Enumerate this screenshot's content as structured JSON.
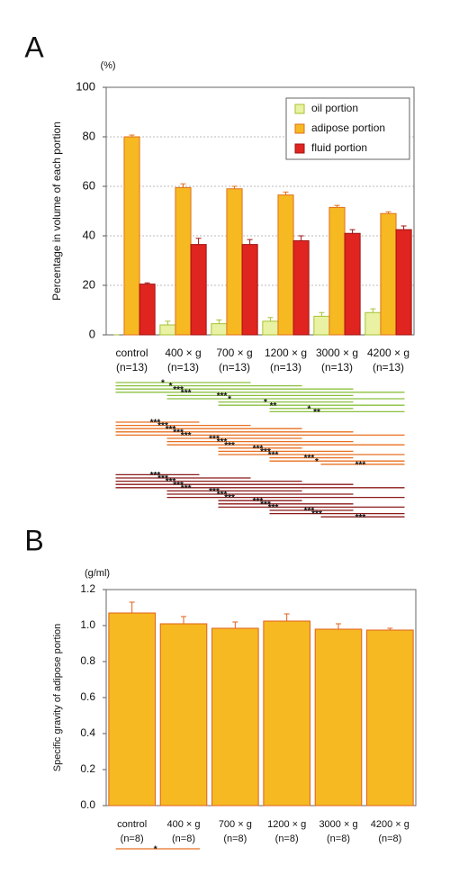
{
  "chart_data": [
    {
      "type": "bar",
      "panel": "A",
      "unit": "(%)",
      "ylabel": "Percentage in volume of each portion",
      "categories": [
        "control",
        "400 × g",
        "700 × g",
        "1200 × g",
        "3000 × g",
        "4200 × g"
      ],
      "n_labels": [
        "(n=13)",
        "(n=13)",
        "(n=13)",
        "(n=13)",
        "(n=13)",
        "(n=13)"
      ],
      "series": [
        {
          "name": "oil portion",
          "color": "#e9f2a2",
          "edge": "#a6c232",
          "values": [
            0,
            4,
            4.5,
            5.5,
            7.5,
            9
          ],
          "errors": [
            0,
            1.5,
            1.5,
            1.5,
            1.5,
            1.5
          ]
        },
        {
          "name": "adipose portion",
          "color": "#f6b922",
          "edge": "#e0701a",
          "values": [
            80,
            59.5,
            59,
            56.5,
            51.5,
            49
          ],
          "errors": [
            0.7,
            1.5,
            1,
            1.2,
            0.8,
            0.7
          ]
        },
        {
          "name": "fluid portion",
          "color": "#e02420",
          "edge": "#a01212",
          "values": [
            20.5,
            36.5,
            36.5,
            38,
            41,
            42.5
          ],
          "errors": [
            0.5,
            2.5,
            2,
            2,
            1.5,
            1.5
          ]
        }
      ],
      "ylim": [
        0,
        100
      ],
      "yticks": [
        0,
        20,
        40,
        60,
        80,
        100
      ],
      "grid": true,
      "legend": "top-right",
      "comparisons": [
        {
          "color": "#8cc040",
          "pairs": [
            [
              0,
              2,
              "*"
            ],
            [
              0,
              3,
              "*"
            ],
            [
              0,
              4,
              "***"
            ],
            [
              0,
              5,
              "***"
            ],
            [
              1,
              4,
              "***"
            ],
            [
              1,
              5,
              "*"
            ],
            [
              2,
              4,
              "*"
            ],
            [
              2,
              5,
              "**"
            ],
            [
              3,
              4,
              "*"
            ],
            [
              3,
              5,
              "**"
            ]
          ]
        },
        {
          "color": "#e87020",
          "pairs": [
            [
              0,
              1,
              "***"
            ],
            [
              0,
              2,
              "***"
            ],
            [
              0,
              3,
              "***"
            ],
            [
              0,
              4,
              "***"
            ],
            [
              0,
              5,
              "***"
            ],
            [
              1,
              3,
              "***"
            ],
            [
              1,
              4,
              "***"
            ],
            [
              1,
              5,
              "***"
            ],
            [
              2,
              3,
              "***"
            ],
            [
              2,
              4,
              "***"
            ],
            [
              2,
              5,
              "***"
            ],
            [
              3,
              4,
              "***"
            ],
            [
              3,
              5,
              "*"
            ],
            [
              4,
              5,
              "***"
            ]
          ]
        },
        {
          "color": "#8b1a1a",
          "pairs": [
            [
              0,
              1,
              "***"
            ],
            [
              0,
              2,
              "***"
            ],
            [
              0,
              3,
              "***"
            ],
            [
              0,
              4,
              "***"
            ],
            [
              0,
              5,
              "***"
            ],
            [
              1,
              3,
              "***"
            ],
            [
              1,
              4,
              "***"
            ],
            [
              1,
              5,
              "***"
            ],
            [
              2,
              3,
              "***"
            ],
            [
              2,
              4,
              "***"
            ],
            [
              2,
              5,
              "***"
            ],
            [
              3,
              4,
              "***"
            ],
            [
              3,
              5,
              "***"
            ],
            [
              4,
              5,
              "***"
            ]
          ]
        }
      ]
    },
    {
      "type": "bar",
      "panel": "B",
      "unit": "(g/ml)",
      "ylabel": "Specific gravity of adipose portion",
      "categories": [
        "control",
        "400 × g",
        "700 × g",
        "1200 × g",
        "3000 × g",
        "4200 × g"
      ],
      "n_labels": [
        "(n=8)",
        "(n=8)",
        "(n=8)",
        "(n=8)",
        "(n=8)",
        "(n=8)"
      ],
      "series": [
        {
          "name": "adipose portion",
          "color": "#f6b922",
          "edge": "#e0601a",
          "values": [
            1.07,
            1.01,
            0.985,
            1.025,
            0.98,
            0.975
          ],
          "errors": [
            0.06,
            0.04,
            0.035,
            0.04,
            0.03,
            0.01
          ]
        }
      ],
      "ylim": [
        0,
        1.2
      ],
      "yticks": [
        {
          "value": 0,
          "label": "0.0"
        },
        0.2,
        0.4,
        0.6,
        0.8,
        {
          "value": 1,
          "label": "1.0"
        },
        1.2
      ],
      "grid": false,
      "comparisons": [
        {
          "color": "#e87020",
          "pairs": [
            [
              0,
              1,
              "*"
            ]
          ]
        }
      ]
    }
  ]
}
